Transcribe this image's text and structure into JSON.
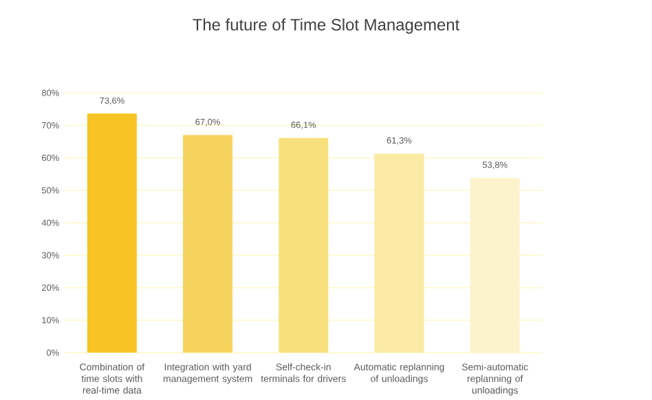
{
  "chart_data": {
    "type": "bar",
    "title": "The future of Time Slot Management",
    "categories": [
      "Combination of time slots with real-time data",
      "Integration with yard management system",
      "Self-check-in terminals for drivers",
      "Automatic replanning of unloadings",
      "Semi-automatic replanning of unloadings"
    ],
    "values": [
      73.6,
      67.0,
      66.1,
      61.3,
      53.8
    ],
    "value_labels": [
      "73,6%",
      "67,0%",
      "66,1%",
      "61,3%",
      "53,8%"
    ],
    "colors": [
      "#f7c325",
      "#f6d35c",
      "#f8e07c",
      "#faeaa3",
      "#fcf3cc"
    ],
    "ylim": [
      0,
      80
    ],
    "yticks": [
      {
        "value": 0,
        "label": "0%"
      },
      {
        "value": 10,
        "label": "10%"
      },
      {
        "value": 20,
        "label": "20%"
      },
      {
        "value": 30,
        "label": "30%"
      },
      {
        "value": 40,
        "label": "40%"
      },
      {
        "value": 50,
        "label": "50%"
      },
      {
        "value": 60,
        "label": "60%"
      },
      {
        "value": 70,
        "label": "70%"
      },
      {
        "value": 80,
        "label": "80%"
      }
    ],
    "grid": "y"
  }
}
